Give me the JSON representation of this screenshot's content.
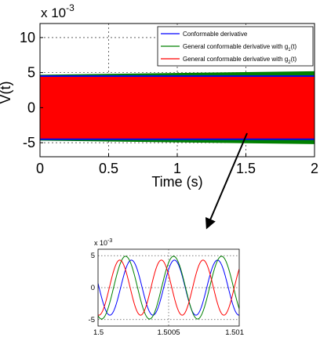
{
  "chart_data": [
    {
      "type": "line",
      "title": "",
      "xlabel": "Time (s)",
      "ylabel": "V(t)",
      "exponent_label": "x 10",
      "exponent_power": "-3",
      "xlim": [
        0,
        2
      ],
      "ylim": [
        -7,
        12
      ],
      "xticks": [
        0,
        0.5,
        1,
        1.5,
        2
      ],
      "xtick_labels": [
        "0",
        "0.5",
        "1",
        "1.5",
        "2"
      ],
      "yticks": [
        -5,
        0,
        5,
        10
      ],
      "ytick_labels": [
        "-5",
        "0",
        "5",
        "10"
      ],
      "grid": true,
      "legend_position": "top-right",
      "series": [
        {
          "name": "Conformable derivative",
          "name_sub": "",
          "name_tail": "",
          "color": "#0000ff",
          "amplitude": 4.6
        },
        {
          "name": "General conformable derivative with g",
          "name_sub": "1",
          "name_tail": "(t)",
          "color": "#008000",
          "amplitude_start": 4.7,
          "amplitude_end": 5.2
        },
        {
          "name": "General conformable derivative with g",
          "name_sub": "2",
          "name_tail": "(t)",
          "color": "#ff0000",
          "amplitude": 4.4
        }
      ]
    },
    {
      "type": "line",
      "title": "",
      "xlabel": "",
      "ylabel": "",
      "exponent_label": "x 10",
      "exponent_power": "-3",
      "xlim": [
        1.5,
        1.501
      ],
      "ylim": [
        -6,
        6
      ],
      "xticks": [
        1.5,
        1.5005,
        1.501
      ],
      "xtick_labels": [
        "1.5",
        "1.5005",
        "1.501"
      ],
      "yticks": [
        -5,
        0,
        5
      ],
      "ytick_labels": [
        "-5",
        "0",
        "5"
      ],
      "grid": true,
      "series": [
        {
          "color": "#0000ff",
          "amplitude": 4.3,
          "period": 0.000305,
          "phase": 0.00016
        },
        {
          "color": "#008000",
          "amplitude": 4.9,
          "period": 0.00034,
          "phase": 0.00011
        },
        {
          "color": "#ff0000",
          "amplitude": 4.3,
          "period": 0.000295,
          "phase": 8e-05
        }
      ]
    }
  ]
}
